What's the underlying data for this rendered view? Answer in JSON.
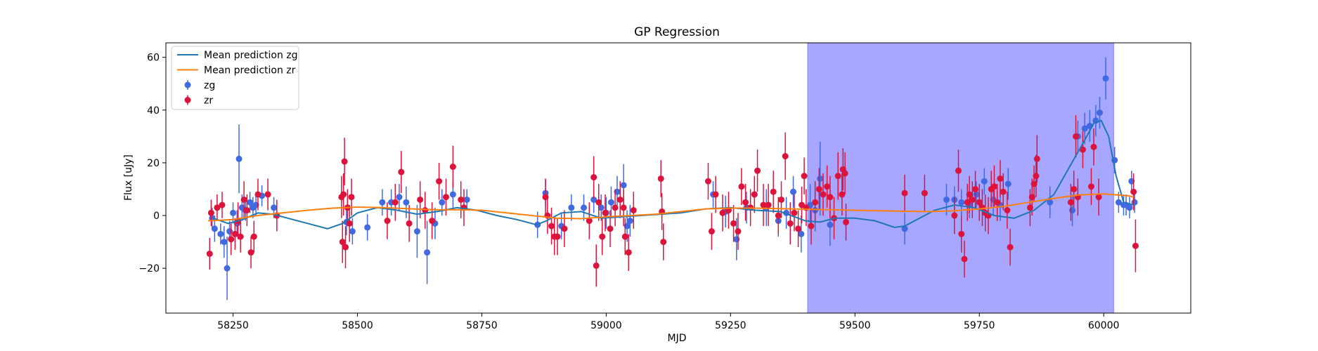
{
  "chart_data": {
    "type": "scatter",
    "title": "GP Regression",
    "xlabel": "MJD",
    "ylabel": "Flux [uJy]",
    "xlim": [
      58115,
      60175
    ],
    "ylim": [
      -37,
      65.5
    ],
    "xticks": [
      58250,
      58500,
      58750,
      59000,
      59250,
      59500,
      59750,
      60000
    ],
    "yticks": [
      -20,
      0,
      20,
      40,
      60
    ],
    "grid": false,
    "legend": {
      "placement": "top-left",
      "entries": [
        "Mean prediction zg",
        "Mean prediction zr",
        "zg",
        "zr"
      ]
    },
    "highlight_span": {
      "x0": 59405,
      "x1": 60020,
      "color": "#a7a7ff"
    },
    "colors": {
      "zg_points": "#4169e1",
      "zr_points": "#dc143c",
      "zg_line": "#1f77b4",
      "zr_line": "#ff7f0e"
    },
    "series": [
      {
        "name": "Mean prediction zg",
        "kind": "line",
        "x": [
          58210,
          58240,
          58270,
          58300,
          58330,
          58360,
          58400,
          58440,
          58470,
          58500,
          58540,
          58580,
          58620,
          58660,
          58700,
          58740,
          58780,
          58820,
          58860,
          58880,
          58910,
          58950,
          58990,
          59030,
          59070,
          59110,
          59150,
          59200,
          59250,
          59300,
          59350,
          59400,
          59430,
          59460,
          59500,
          59540,
          59580,
          59600,
          59630,
          59660,
          59700,
          59740,
          59780,
          59820,
          59860,
          59900,
          59930,
          59960,
          59980,
          59995,
          60010,
          60025,
          60040,
          60060
        ],
        "y": [
          -1,
          -3,
          -1.5,
          1,
          0.5,
          -1,
          -3,
          -5,
          -3,
          1,
          3,
          2,
          0.5,
          1.5,
          3,
          2,
          0,
          -1.5,
          -3.5,
          -2,
          1,
          1.5,
          -1,
          -0.5,
          0,
          0.5,
          1,
          2.5,
          3,
          2,
          1.5,
          -2,
          -2.5,
          -1,
          -1,
          -2,
          -4.5,
          -4,
          -1,
          2,
          4,
          3,
          0,
          -1,
          2,
          8,
          18,
          28,
          35,
          36,
          30,
          15,
          5,
          4
        ]
      },
      {
        "name": "Mean prediction zr",
        "kind": "line",
        "x": [
          58200,
          58250,
          58300,
          58350,
          58400,
          58450,
          58500,
          58550,
          58600,
          58650,
          58700,
          58750,
          58800,
          58850,
          58900,
          58950,
          59000,
          59050,
          59100,
          59150,
          59200,
          59250,
          59300,
          59350,
          59400,
          59450,
          59500,
          59550,
          59600,
          59650,
          59700,
          59750,
          59800,
          59850,
          59900,
          59950,
          60000,
          60050,
          60060
        ],
        "y": [
          -2,
          -1.5,
          0,
          1,
          2,
          2.8,
          3.2,
          3,
          2.6,
          2.2,
          2.2,
          2,
          1,
          0,
          -1,
          -1.2,
          -0.5,
          0,
          0.5,
          1.5,
          2.5,
          2.8,
          2.8,
          2.6,
          2.4,
          2.2,
          2,
          1.8,
          1.6,
          1.5,
          1.8,
          2.5,
          3.5,
          5,
          6.5,
          7.8,
          8.2,
          7.5,
          7
        ]
      },
      {
        "name": "zg",
        "kind": "errorbar",
        "x": [
          58208,
          58213,
          58225,
          58232,
          58238,
          58243,
          58250,
          58258,
          58262,
          58268,
          58275,
          58284,
          58290,
          58296,
          58308,
          58332,
          58478,
          58490,
          58520,
          58550,
          58568,
          58584,
          58598,
          58620,
          58640,
          58656,
          58670,
          58692,
          58720,
          58862,
          58878,
          58910,
          58930,
          58955,
          58975,
          58990,
          59000,
          59010,
          59022,
          59035,
          59042,
          59048,
          59215,
          59240,
          59262,
          59282,
          59298,
          59322,
          59346,
          59362,
          59376,
          59392,
          59410,
          59420,
          59430,
          59450,
          59600,
          59684,
          59700,
          59714,
          59730,
          59744,
          59760,
          59778,
          59792,
          59808,
          59892,
          59937,
          59948,
          59962,
          59972,
          59984,
          59992,
          60004,
          60022,
          60030,
          60040,
          60045,
          60052,
          60056,
          60062
        ],
        "y": [
          -1,
          -5,
          -7,
          -10,
          -20,
          -6,
          1,
          -3,
          21.5,
          3,
          2,
          5,
          3,
          4,
          7.5,
          3,
          -2.5,
          -6,
          -4.5,
          5,
          5,
          7,
          5,
          -6,
          -14,
          -3,
          5,
          8,
          6,
          -3.5,
          8.5,
          -4,
          3,
          3,
          6,
          3,
          1,
          5,
          9,
          11.5,
          -4,
          -2,
          8,
          1.5,
          -9,
          3,
          8,
          3,
          -2,
          1,
          9,
          -7,
          4,
          2,
          14,
          -3.5,
          -5,
          6,
          6,
          5,
          4,
          8,
          13,
          6,
          4,
          12,
          5,
          2,
          30,
          33,
          34,
          36,
          39,
          52,
          21,
          5,
          4,
          4,
          3,
          13,
          5
        ],
        "err": [
          4,
          5,
          4,
          6,
          12,
          4,
          4,
          5,
          13,
          5,
          4,
          4,
          4,
          4,
          4,
          4,
          5,
          5,
          5,
          5,
          5,
          5,
          6,
          10,
          12,
          6,
          5,
          5,
          4,
          5,
          5,
          5,
          5,
          5,
          5,
          5,
          6,
          6,
          6,
          8,
          6,
          6,
          5,
          6,
          8,
          6,
          6,
          7,
          6,
          6,
          6,
          7,
          8,
          8,
          14,
          8,
          6,
          6,
          5,
          5,
          5,
          5,
          5,
          6,
          6,
          6,
          6,
          6,
          6,
          6,
          6,
          6,
          6,
          8,
          5,
          4,
          4,
          4,
          4,
          4,
          4
        ]
      },
      {
        "name": "zr",
        "kind": "errorbar",
        "x": [
          58203,
          58206,
          58218,
          58228,
          58246,
          58254,
          58260,
          58265,
          58272,
          58278,
          58286,
          58292,
          58300,
          58320,
          58338,
          58468,
          58470,
          58472,
          58474,
          58476,
          58480,
          58484,
          58488,
          58560,
          58576,
          58588,
          58604,
          58626,
          58636,
          58650,
          58664,
          58678,
          58692,
          58708,
          58714,
          58878,
          58882,
          58890,
          58896,
          58902,
          58916,
          58966,
          58975,
          58980,
          58985,
          58992,
          58998,
          59008,
          59018,
          59028,
          59035,
          59038,
          59045,
          59055,
          59110,
          59112,
          59115,
          59205,
          59212,
          59220,
          59234,
          59246,
          59256,
          59265,
          59272,
          59280,
          59290,
          59298,
          59304,
          59316,
          59326,
          59336,
          59346,
          59352,
          59360,
          59370,
          59378,
          59386,
          59393,
          59398,
          59402,
          59412,
          59420,
          59428,
          59436,
          59444,
          59450,
          59458,
          59466,
          59474,
          59476,
          59480,
          59482,
          59600,
          59640,
          59700,
          59708,
          59714,
          59720,
          59726,
          59730,
          59736,
          59742,
          59750,
          59756,
          59762,
          59768,
          59774,
          59780,
          59786,
          59792,
          59798,
          59806,
          59812,
          59852,
          59856,
          59860,
          59864,
          59866,
          59934,
          59940,
          59944,
          59948,
          59958,
          59975,
          59980,
          59990,
          60060,
          60064
        ],
        "y": [
          -14.5,
          1,
          3,
          4,
          -9,
          -7,
          -2,
          -8,
          6,
          2,
          -14,
          -8,
          8,
          8,
          0,
          7,
          -10,
          8,
          20.5,
          -12,
          3,
          -3,
          7,
          -2,
          5,
          16.5,
          -3,
          6,
          2,
          -2,
          13,
          7,
          18.5,
          6,
          3,
          7,
          0,
          -4,
          -8,
          -8,
          -5,
          -2,
          14.5,
          -19,
          5,
          -8,
          1,
          -5,
          3,
          6,
          3,
          -8,
          -14,
          2,
          14,
          1.5,
          -10,
          13,
          -6,
          8,
          1,
          2,
          -3,
          -6,
          11,
          5,
          3,
          8,
          17,
          4,
          4,
          9,
          0,
          6,
          22.5,
          -3,
          1,
          -5,
          4,
          15,
          3,
          -4,
          5,
          10,
          8,
          11,
          7,
          -1,
          15,
          8,
          17.5,
          16,
          -2.5,
          8.5,
          8.5,
          0,
          17,
          -7,
          -16.5,
          5,
          8,
          6,
          10,
          5,
          3,
          1,
          0,
          10,
          11,
          5,
          14,
          9,
          2,
          -12,
          3,
          7,
          12,
          15,
          21.5,
          5,
          10,
          30,
          7,
          25,
          11,
          26,
          7,
          9,
          -11.5
        ],
        "err": [
          6,
          5,
          5,
          5,
          6,
          6,
          7,
          6,
          7,
          6,
          6,
          6,
          6,
          6,
          6,
          8,
          8,
          8,
          9,
          8,
          7,
          7,
          7,
          7,
          7,
          8,
          7,
          7,
          7,
          7,
          7,
          7,
          8,
          7,
          7,
          7,
          7,
          7,
          7,
          7,
          7,
          7,
          8,
          8,
          7,
          7,
          7,
          7,
          7,
          7,
          7,
          7,
          7,
          7,
          7,
          7,
          7,
          7,
          7,
          7,
          7,
          7,
          7,
          7,
          7,
          7,
          7,
          7,
          8,
          8,
          8,
          8,
          7,
          7,
          9,
          8,
          7,
          7,
          7,
          7,
          7,
          7,
          8,
          8,
          8,
          8,
          8,
          8,
          9,
          8,
          8,
          8,
          7,
          7,
          7,
          7,
          8,
          7,
          7,
          7,
          7,
          7,
          7,
          7,
          7,
          7,
          7,
          7,
          8,
          7,
          7,
          7,
          7,
          7,
          7,
          7,
          7,
          8,
          9,
          7,
          7,
          8,
          7,
          7,
          7,
          7,
          7,
          7,
          10
        ]
      }
    ]
  }
}
